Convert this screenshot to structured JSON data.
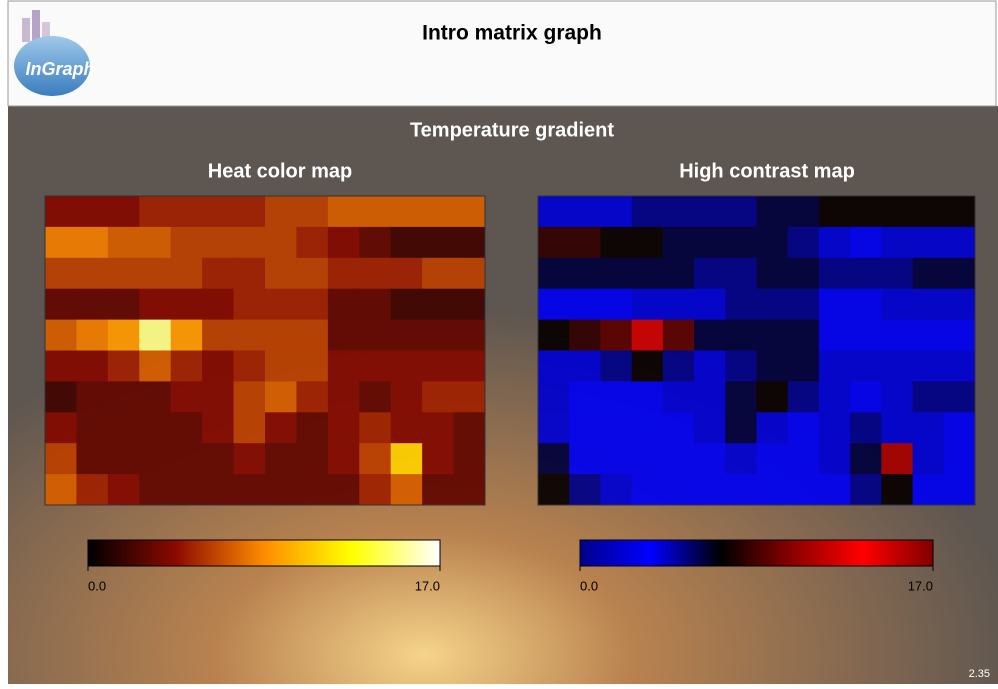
{
  "header": {
    "title": "Intro matrix graph",
    "logo": "InGraph"
  },
  "suptitle": "Temperature gradient",
  "version": "2.35",
  "chart_data": [
    {
      "type": "heatmap",
      "title": "Heat color map",
      "zlim": [
        0,
        17
      ],
      "colorbar_ticks": [
        {
          "value": 0,
          "label": "0.0"
        },
        {
          "value": 17,
          "label": "17.0"
        }
      ],
      "colormap": [
        "#000000",
        "#8b0a00",
        "#ff8c00",
        "#ffff00",
        "#ffffff"
      ],
      "values": [
        [
          4,
          4,
          4,
          5,
          5,
          5,
          5,
          6,
          6,
          7,
          7,
          7,
          7,
          7
        ],
        [
          8,
          8,
          7,
          7,
          6,
          6,
          6,
          6,
          5,
          4,
          3,
          2,
          2,
          2
        ],
        [
          6,
          6,
          6,
          6,
          6,
          5,
          5,
          6,
          6,
          5,
          5,
          5,
          6,
          6
        ],
        [
          3,
          3,
          3,
          4,
          4,
          4,
          5,
          5,
          5,
          3,
          3,
          2,
          2,
          2
        ],
        [
          7,
          8,
          9,
          15,
          9,
          6,
          6,
          6,
          6,
          3,
          3,
          3,
          3,
          3
        ],
        [
          4,
          4,
          5,
          7,
          5,
          4,
          5,
          6,
          6,
          4,
          4,
          4,
          4,
          4
        ],
        [
          2,
          3,
          3,
          3,
          4,
          4,
          6,
          7,
          5,
          4,
          3,
          4,
          5,
          5
        ],
        [
          4,
          3,
          3,
          3,
          3,
          4,
          6,
          4,
          3,
          4,
          5,
          4,
          4,
          3
        ],
        [
          6,
          3,
          3,
          3,
          3,
          3,
          4,
          3,
          3,
          4,
          6,
          11,
          4,
          3
        ],
        [
          7,
          5,
          4,
          3,
          3,
          3,
          3,
          3,
          3,
          3,
          5,
          7,
          3,
          3
        ]
      ]
    },
    {
      "type": "heatmap",
      "title": "High contrast map",
      "zlim": [
        0,
        17
      ],
      "colorbar_ticks": [
        {
          "value": 0,
          "label": "0.0"
        },
        {
          "value": 17,
          "label": "17.0"
        }
      ],
      "colormap": [
        "#00008b",
        "#0000ff",
        "#000000",
        "#8b0000",
        "#ff0000",
        "#800000"
      ],
      "values": [
        [
          4,
          4,
          4,
          5,
          5,
          5,
          5,
          6,
          6,
          7,
          7,
          7,
          7,
          7
        ],
        [
          8,
          8,
          7,
          7,
          6,
          6,
          6,
          6,
          5,
          4,
          3,
          2,
          2,
          2
        ],
        [
          6,
          6,
          6,
          6,
          6,
          5,
          5,
          6,
          6,
          5,
          5,
          5,
          6,
          6
        ],
        [
          3,
          3,
          3,
          4,
          4,
          4,
          5,
          5,
          5,
          3,
          3,
          2,
          2,
          2
        ],
        [
          7,
          8,
          9,
          15,
          9,
          6,
          6,
          6,
          6,
          3,
          3,
          3,
          3,
          3
        ],
        [
          4,
          4,
          5,
          7,
          5,
          4,
          5,
          6,
          6,
          4,
          4,
          4,
          4,
          4
        ],
        [
          2,
          3,
          3,
          3,
          4,
          4,
          6,
          7,
          5,
          4,
          3,
          4,
          5,
          5
        ],
        [
          4,
          3,
          3,
          3,
          3,
          4,
          6,
          4,
          3,
          4,
          5,
          4,
          4,
          3
        ],
        [
          6,
          3,
          3,
          3,
          3,
          3,
          4,
          3,
          3,
          4,
          6,
          11,
          4,
          3
        ],
        [
          7,
          5,
          4,
          3,
          3,
          3,
          3,
          3,
          3,
          3,
          5,
          7,
          3,
          3
        ]
      ]
    }
  ]
}
